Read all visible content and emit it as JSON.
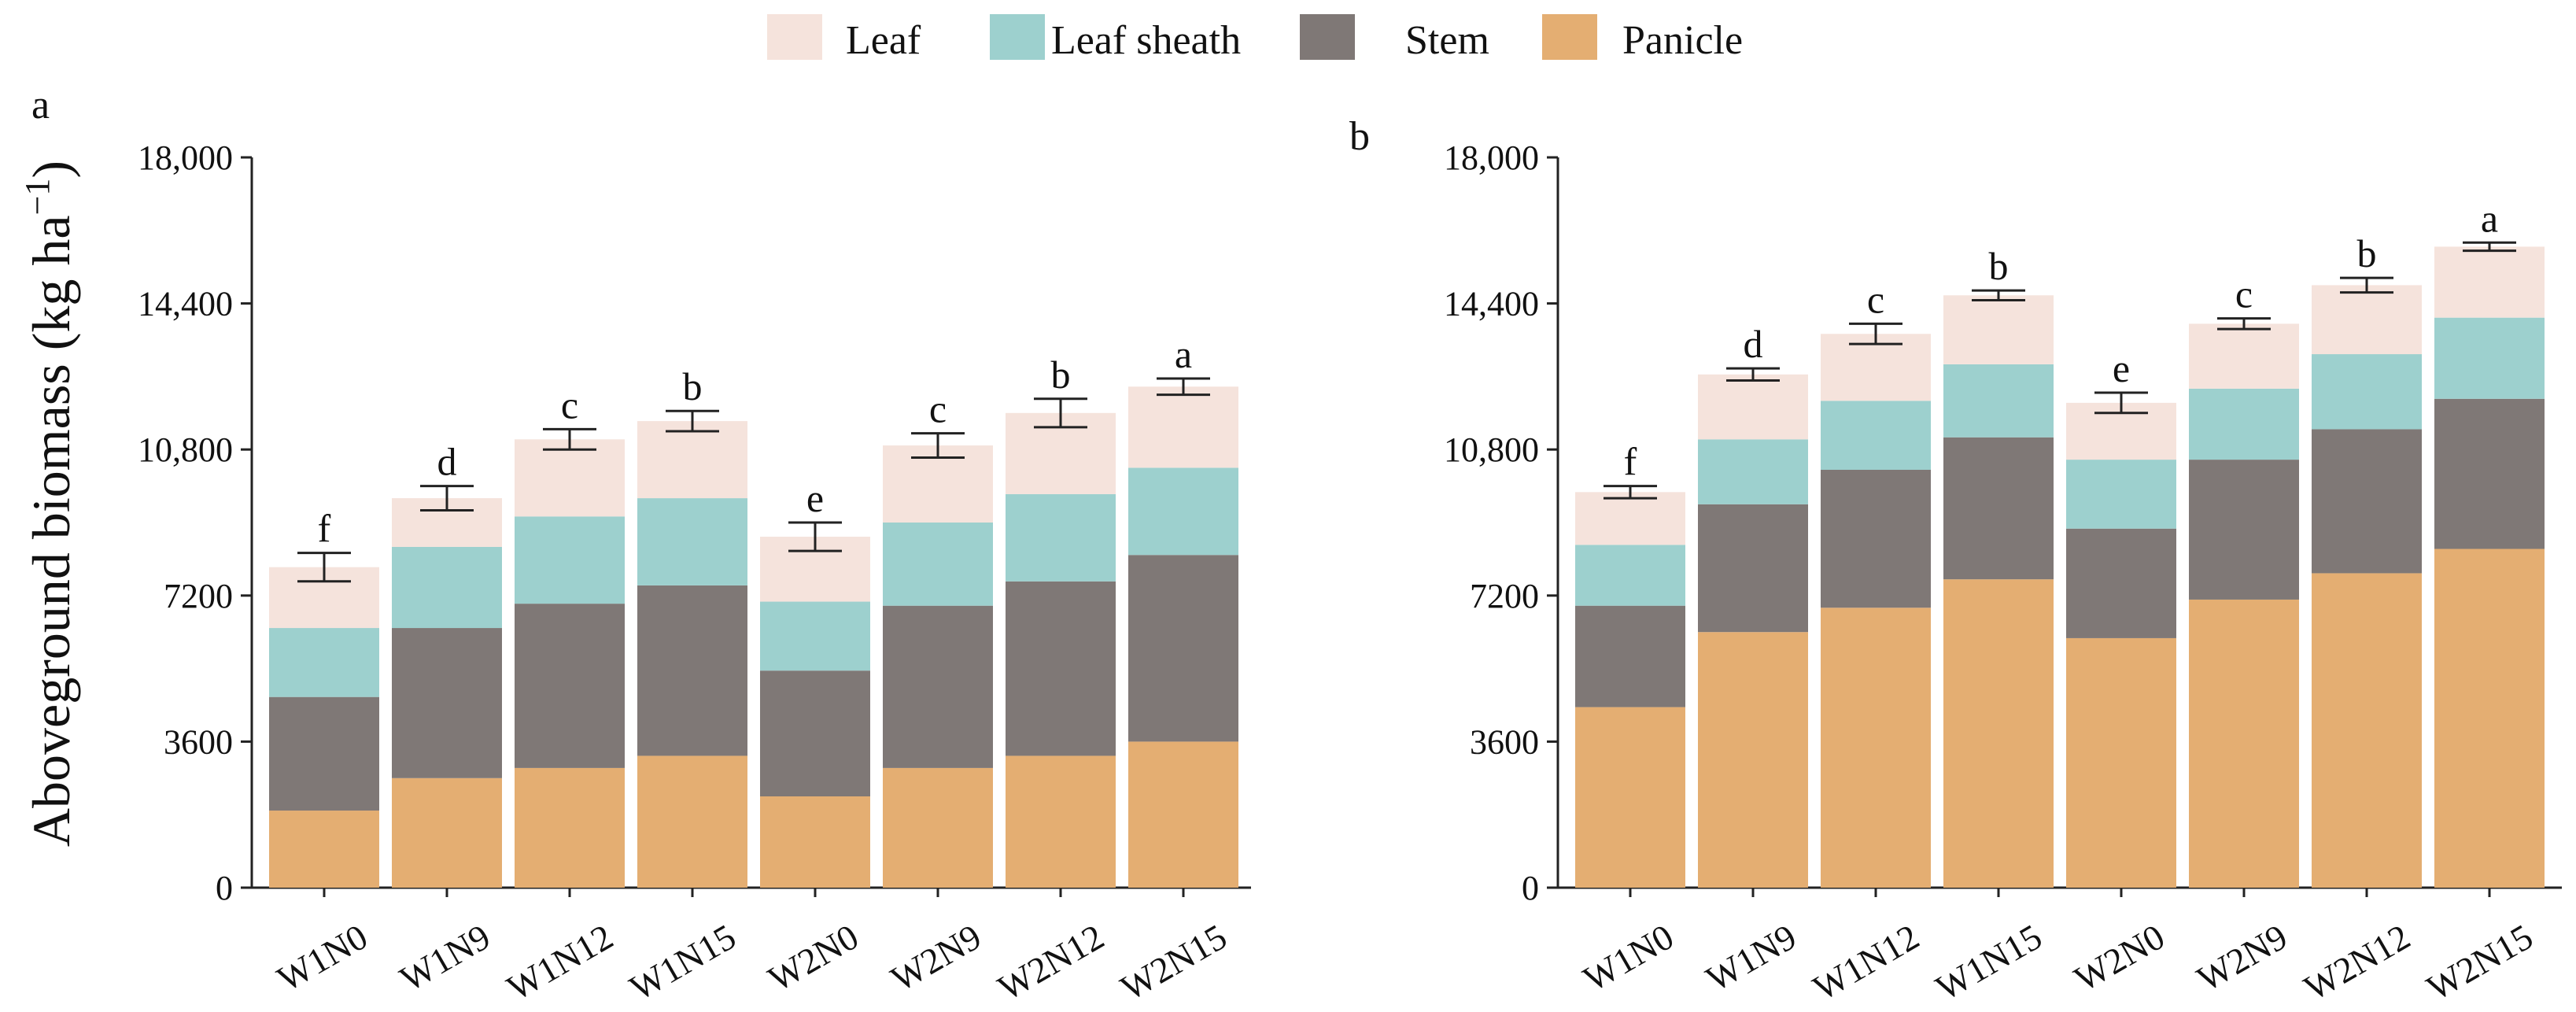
{
  "colors": {
    "Panicle": "#e4ae72",
    "Stem": "#7f7876",
    "Leaf sheath": "#9dd0ce",
    "Leaf": "#f5e3dc"
  },
  "legend": [
    "Leaf",
    "Leaf sheath",
    "Stem",
    "Panicle"
  ],
  "y_axis_label_main": "Aboveground biomass (kg ha",
  "y_axis_label_sup": "−1",
  "y_axis_label_close": ")",
  "chart_data": [
    {
      "type": "bar",
      "panel_label": "a",
      "stacked": true,
      "categories": [
        "W1N0",
        "W1N9",
        "W1N12",
        "W1N15",
        "W2N0",
        "W2N9",
        "W2N12",
        "W2N15"
      ],
      "ylim": [
        0,
        18000
      ],
      "yticks": [
        0,
        3600,
        7200,
        10800,
        14400,
        18000
      ],
      "ytick_labels": [
        "0",
        "3600",
        "7200",
        "10,800",
        "14,400",
        "18,000"
      ],
      "series": [
        {
          "name": "Panicle",
          "values": [
            1900,
            2700,
            2950,
            3250,
            2250,
            2950,
            3250,
            3600
          ]
        },
        {
          "name": "Stem",
          "values": [
            2800,
            3700,
            4050,
            4200,
            3100,
            4000,
            4300,
            4600
          ]
        },
        {
          "name": "Leaf sheath",
          "values": [
            1700,
            2000,
            2150,
            2150,
            1700,
            2050,
            2150,
            2150
          ]
        },
        {
          "name": "Leaf",
          "values": [
            1500,
            1200,
            1900,
            1900,
            1600,
            1900,
            2000,
            2000
          ]
        }
      ],
      "errors": [
        350,
        300,
        250,
        250,
        350,
        300,
        350,
        200
      ],
      "significance": [
        "f",
        "d",
        "c",
        "b",
        "e",
        "c",
        "b",
        "a"
      ]
    },
    {
      "type": "bar",
      "panel_label": "b",
      "stacked": true,
      "categories": [
        "W1N0",
        "W1N9",
        "W1N12",
        "W1N15",
        "W2N0",
        "W2N9",
        "W2N12",
        "W2N15"
      ],
      "ylim": [
        0,
        18000
      ],
      "yticks": [
        0,
        3600,
        7200,
        10800,
        14400,
        18000
      ],
      "ytick_labels": [
        "0",
        "3600",
        "7200",
        "10,800",
        "14,400",
        "18,000"
      ],
      "series": [
        {
          "name": "Panicle",
          "values": [
            4450,
            6300,
            6900,
            7600,
            6150,
            7100,
            7750,
            8350
          ]
        },
        {
          "name": "Stem",
          "values": [
            2500,
            3150,
            3400,
            3500,
            2700,
            3450,
            3550,
            3700
          ]
        },
        {
          "name": "Leaf sheath",
          "values": [
            1500,
            1600,
            1700,
            1800,
            1700,
            1750,
            1850,
            2000
          ]
        },
        {
          "name": "Leaf",
          "values": [
            1300,
            1600,
            1650,
            1700,
            1400,
            1600,
            1700,
            1750
          ]
        }
      ],
      "errors": [
        150,
        150,
        250,
        120,
        250,
        130,
        180,
        100
      ],
      "significance": [
        "f",
        "d",
        "c",
        "b",
        "e",
        "c",
        "b",
        "a"
      ]
    }
  ]
}
